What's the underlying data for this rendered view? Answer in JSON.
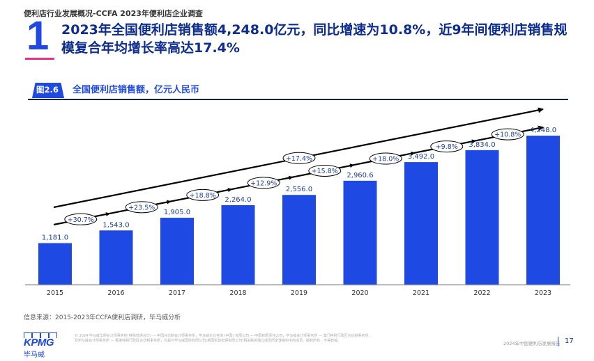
{
  "header": {
    "breadcrumb": "便利店行业发展概况-CCFA 2023年便利店企业调查",
    "section_number": "1",
    "headline": "2023年全国便利店销售额4,248.0亿元，同比增速为10.8%，近9年间便利店销售规模复合年均增长率高达17.4%"
  },
  "figure": {
    "tag": "图2.6",
    "title": "全国便利店销售额，亿元人民币"
  },
  "chart_data": {
    "type": "bar",
    "title": "全国便利店销售额，亿元人民币",
    "xlabel": "",
    "ylabel": "亿元人民币",
    "categories": [
      "2015",
      "2016",
      "2017",
      "2018",
      "2019",
      "2020",
      "2021",
      "2022",
      "2023"
    ],
    "values": [
      1181.0,
      1543.0,
      1905.0,
      2264.0,
      2556.0,
      2960.6,
      3492.0,
      3834.0,
      4248.0
    ],
    "value_labels": [
      "1,181.0",
      "1,543.0",
      "1,905.0",
      "2,264.0",
      "2,556.0",
      "2,960.6",
      "3,492.0",
      "3,834.0",
      "4,248.0"
    ],
    "yoy_growth_labels": [
      "+30.7%",
      "+23.5%",
      "+18.8%",
      "+12.9%",
      "+15.8%",
      "+18.0%",
      "+9.8%",
      "+10.8%"
    ],
    "cagr_label": "+17.4%",
    "ylim": [
      0,
      4500
    ],
    "grid": false,
    "bar_color": "#1e49e2",
    "label_color": "#1e3f99"
  },
  "footer": {
    "source": "信息来源：2015-2023年CCFA便利店调研，毕马威分析",
    "logo_text": "KPMG",
    "logo_cn": "毕马威",
    "legal_line1": "© 2024 毕马威华振会计师事务所(特殊普通合伙) — 中国合伙制会计师事务所，毕马威企业咨询 (中国) 有限公司 — 中国有限责任公司，毕马威会计师事务所 — 澳门特别行政区合伙制事务所，",
    "legal_line2": "及毕马威会计师事务所 — 香港特别行政区合伙制事务所，均是与毕马威国际有限公司(英国私营担保有限公司)相关联的独立成员所全球组织中的成员。版权所有，不得转载。",
    "report_name": "2024年中国便利店发展报告",
    "page_number": "17"
  }
}
